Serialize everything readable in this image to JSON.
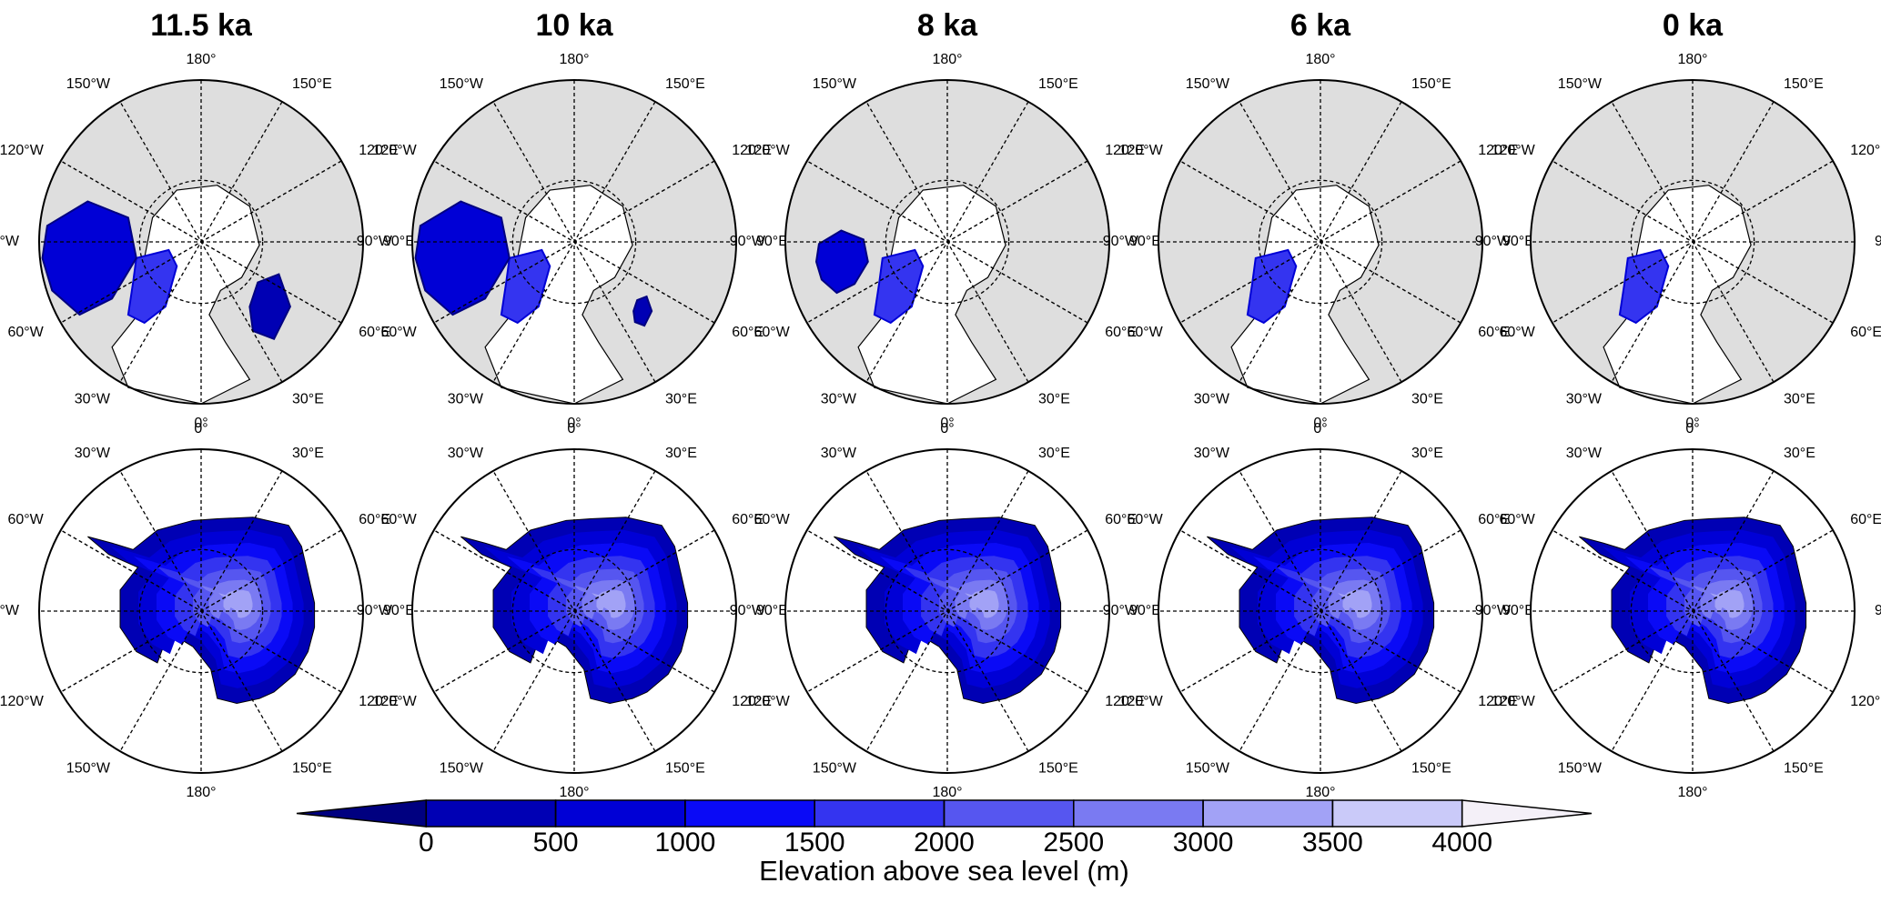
{
  "panels": [
    {
      "title": "11.5 ka"
    },
    {
      "title": "10 ka"
    },
    {
      "title": "8 ka"
    },
    {
      "title": "6 ka"
    },
    {
      "title": "0 ka"
    }
  ],
  "north_labels": [
    "180°",
    "150°E",
    "120°E",
    "90°E",
    "60°E",
    "30°E",
    "0°",
    "30°W",
    "60°W",
    "90°W",
    "120°W",
    "150°W"
  ],
  "south_labels": [
    "0°",
    "30°E",
    "60°E",
    "90°E",
    "120°E",
    "150°E",
    "180°",
    "150°W",
    "120°W",
    "90°W",
    "60°W",
    "30°W"
  ],
  "colorbar": {
    "ticks": [
      0,
      500,
      1000,
      1500,
      2000,
      2500,
      3000,
      3500,
      4000
    ],
    "colors": [
      "#000080",
      "#0000b4",
      "#0000d6",
      "#0a0af6",
      "#3434f0",
      "#5656f0",
      "#7a7af2",
      "#a2a2f6",
      "#cacaf9",
      "#f4f0f8"
    ],
    "label": "Elevation above sea level (m)"
  }
}
